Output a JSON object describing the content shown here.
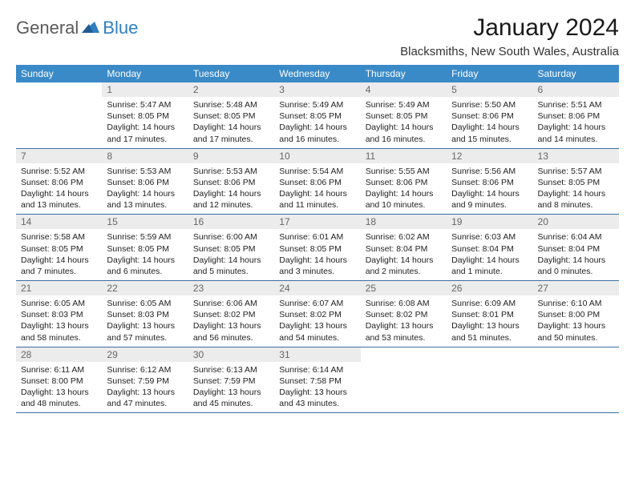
{
  "logo": {
    "part1": "General",
    "part2": "Blue"
  },
  "title": "January 2024",
  "subtitle": "Blacksmiths, New South Wales, Australia",
  "colors": {
    "header_bg": "#3a8ac8",
    "header_fg": "#ffffff",
    "daynum_bg": "#ececec",
    "daynum_fg": "#666666",
    "rule": "#3a6fa3",
    "logo_gray": "#5a5a5a",
    "logo_blue": "#2f7fc1"
  },
  "weekdays": [
    "Sunday",
    "Monday",
    "Tuesday",
    "Wednesday",
    "Thursday",
    "Friday",
    "Saturday"
  ],
  "days": [
    {
      "n": 1,
      "sr": "5:47 AM",
      "ss": "8:05 PM",
      "dl": "14 hours and 17 minutes."
    },
    {
      "n": 2,
      "sr": "5:48 AM",
      "ss": "8:05 PM",
      "dl": "14 hours and 17 minutes."
    },
    {
      "n": 3,
      "sr": "5:49 AM",
      "ss": "8:05 PM",
      "dl": "14 hours and 16 minutes."
    },
    {
      "n": 4,
      "sr": "5:49 AM",
      "ss": "8:05 PM",
      "dl": "14 hours and 16 minutes."
    },
    {
      "n": 5,
      "sr": "5:50 AM",
      "ss": "8:06 PM",
      "dl": "14 hours and 15 minutes."
    },
    {
      "n": 6,
      "sr": "5:51 AM",
      "ss": "8:06 PM",
      "dl": "14 hours and 14 minutes."
    },
    {
      "n": 7,
      "sr": "5:52 AM",
      "ss": "8:06 PM",
      "dl": "14 hours and 13 minutes."
    },
    {
      "n": 8,
      "sr": "5:53 AM",
      "ss": "8:06 PM",
      "dl": "14 hours and 13 minutes."
    },
    {
      "n": 9,
      "sr": "5:53 AM",
      "ss": "8:06 PM",
      "dl": "14 hours and 12 minutes."
    },
    {
      "n": 10,
      "sr": "5:54 AM",
      "ss": "8:06 PM",
      "dl": "14 hours and 11 minutes."
    },
    {
      "n": 11,
      "sr": "5:55 AM",
      "ss": "8:06 PM",
      "dl": "14 hours and 10 minutes."
    },
    {
      "n": 12,
      "sr": "5:56 AM",
      "ss": "8:06 PM",
      "dl": "14 hours and 9 minutes."
    },
    {
      "n": 13,
      "sr": "5:57 AM",
      "ss": "8:05 PM",
      "dl": "14 hours and 8 minutes."
    },
    {
      "n": 14,
      "sr": "5:58 AM",
      "ss": "8:05 PM",
      "dl": "14 hours and 7 minutes."
    },
    {
      "n": 15,
      "sr": "5:59 AM",
      "ss": "8:05 PM",
      "dl": "14 hours and 6 minutes."
    },
    {
      "n": 16,
      "sr": "6:00 AM",
      "ss": "8:05 PM",
      "dl": "14 hours and 5 minutes."
    },
    {
      "n": 17,
      "sr": "6:01 AM",
      "ss": "8:05 PM",
      "dl": "14 hours and 3 minutes."
    },
    {
      "n": 18,
      "sr": "6:02 AM",
      "ss": "8:04 PM",
      "dl": "14 hours and 2 minutes."
    },
    {
      "n": 19,
      "sr": "6:03 AM",
      "ss": "8:04 PM",
      "dl": "14 hours and 1 minute."
    },
    {
      "n": 20,
      "sr": "6:04 AM",
      "ss": "8:04 PM",
      "dl": "14 hours and 0 minutes."
    },
    {
      "n": 21,
      "sr": "6:05 AM",
      "ss": "8:03 PM",
      "dl": "13 hours and 58 minutes."
    },
    {
      "n": 22,
      "sr": "6:05 AM",
      "ss": "8:03 PM",
      "dl": "13 hours and 57 minutes."
    },
    {
      "n": 23,
      "sr": "6:06 AM",
      "ss": "8:02 PM",
      "dl": "13 hours and 56 minutes."
    },
    {
      "n": 24,
      "sr": "6:07 AM",
      "ss": "8:02 PM",
      "dl": "13 hours and 54 minutes."
    },
    {
      "n": 25,
      "sr": "6:08 AM",
      "ss": "8:02 PM",
      "dl": "13 hours and 53 minutes."
    },
    {
      "n": 26,
      "sr": "6:09 AM",
      "ss": "8:01 PM",
      "dl": "13 hours and 51 minutes."
    },
    {
      "n": 27,
      "sr": "6:10 AM",
      "ss": "8:00 PM",
      "dl": "13 hours and 50 minutes."
    },
    {
      "n": 28,
      "sr": "6:11 AM",
      "ss": "8:00 PM",
      "dl": "13 hours and 48 minutes."
    },
    {
      "n": 29,
      "sr": "6:12 AM",
      "ss": "7:59 PM",
      "dl": "13 hours and 47 minutes."
    },
    {
      "n": 30,
      "sr": "6:13 AM",
      "ss": "7:59 PM",
      "dl": "13 hours and 45 minutes."
    },
    {
      "n": 31,
      "sr": "6:14 AM",
      "ss": "7:58 PM",
      "dl": "13 hours and 43 minutes."
    }
  ],
  "labels": {
    "sunrise": "Sunrise:",
    "sunset": "Sunset:",
    "daylight": "Daylight:"
  },
  "layout": {
    "start_weekday": 1,
    "columns": 7
  }
}
